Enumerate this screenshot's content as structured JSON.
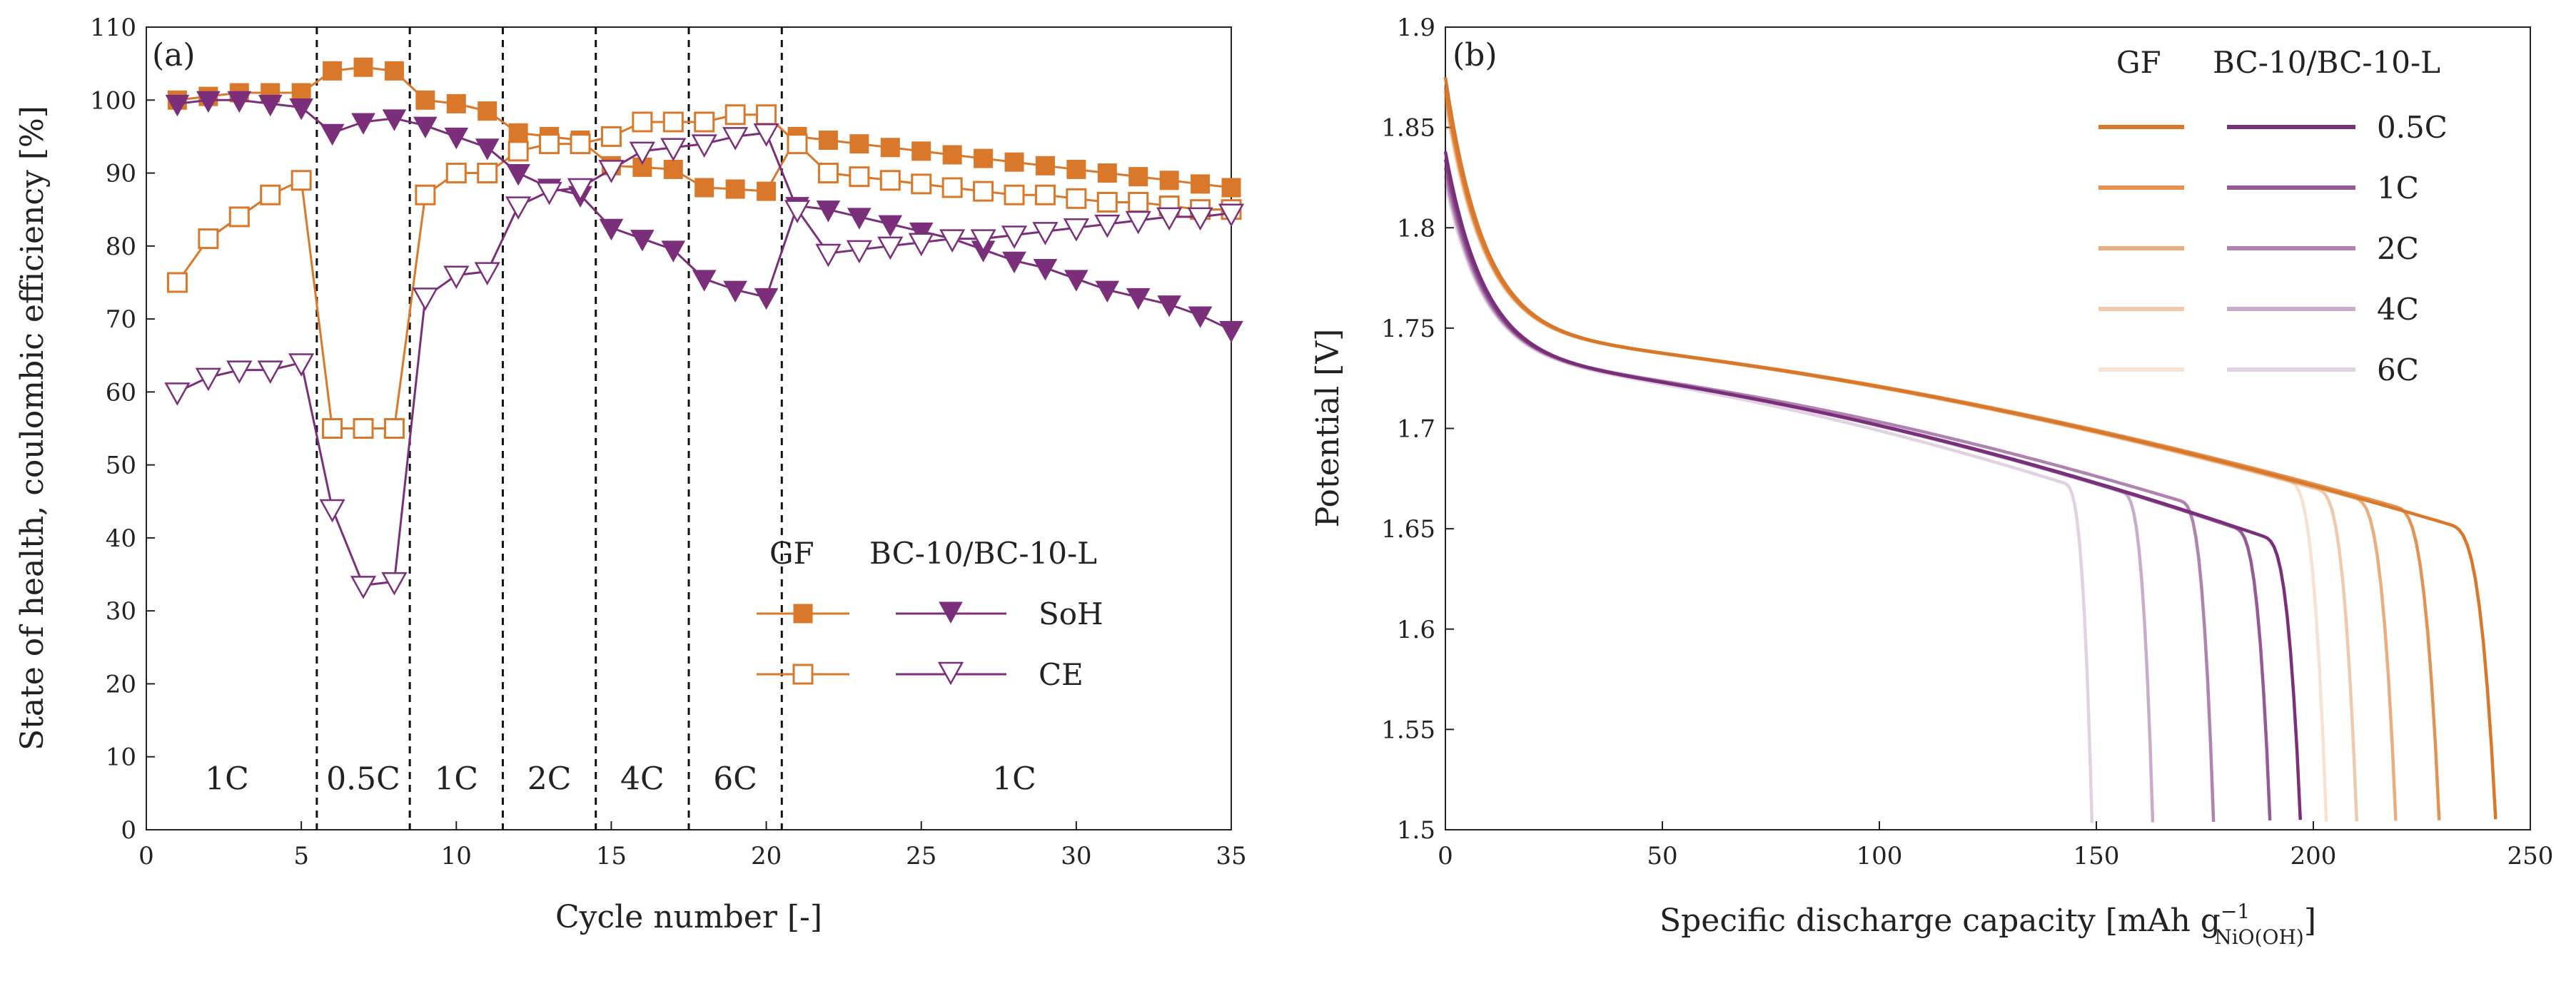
{
  "chart_data": [
    {
      "type": "line",
      "panel_label": "(a)",
      "xlabel": "Cycle number [-]",
      "ylabel": "State of health, coulombic efficiency [%]",
      "xlim": [
        0,
        35
      ],
      "ylim": [
        0,
        110
      ],
      "xticks": [
        0,
        5,
        10,
        15,
        20,
        25,
        30,
        35
      ],
      "yticks": [
        0,
        10,
        20,
        30,
        40,
        50,
        60,
        70,
        80,
        90,
        100,
        110
      ],
      "legend_header": [
        "GF",
        "BC-10/BC-10-L"
      ],
      "legend_rows": [
        "SoH",
        "CE"
      ],
      "colors": {
        "GF": "#D9782A",
        "BC": "#7B2F7B"
      },
      "rate_dividers": [
        5.5,
        8.5,
        11.5,
        14.5,
        17.5,
        20.5
      ],
      "rate_labels": [
        {
          "text": "1C",
          "x": 2.6
        },
        {
          "text": "0.5C",
          "x": 7.0
        },
        {
          "text": "1C",
          "x": 10.0
        },
        {
          "text": "2C",
          "x": 13.0
        },
        {
          "text": "4C",
          "x": 16.0
        },
        {
          "text": "6C",
          "x": 19.0
        },
        {
          "text": "1C",
          "x": 28.0
        }
      ],
      "rate_label_y": 7,
      "series": [
        {
          "name": "GF SoH",
          "group": "GF",
          "marker": "square-filled",
          "x": [
            1,
            2,
            3,
            4,
            5,
            6,
            7,
            8,
            9,
            10,
            11,
            12,
            13,
            14,
            15,
            16,
            17,
            18,
            19,
            20,
            21,
            22,
            23,
            24,
            25,
            26,
            27,
            28,
            29,
            30,
            31,
            32,
            33,
            34,
            35
          ],
          "values": [
            100,
            100.5,
            101,
            101,
            101,
            104,
            104.5,
            104,
            100,
            99.5,
            98.5,
            95.5,
            95,
            94.5,
            91,
            90.8,
            90.5,
            88,
            87.8,
            87.5,
            95,
            94.5,
            94,
            93.5,
            93,
            92.5,
            92,
            91.5,
            91,
            90.5,
            90,
            89.5,
            89,
            88.5,
            88
          ]
        },
        {
          "name": "GF CE",
          "group": "GF",
          "marker": "square-open",
          "x": [
            1,
            2,
            3,
            4,
            5,
            6,
            7,
            8,
            9,
            10,
            11,
            12,
            13,
            14,
            15,
            16,
            17,
            18,
            19,
            20,
            21,
            22,
            23,
            24,
            25,
            26,
            27,
            28,
            29,
            30,
            31,
            32,
            33,
            34,
            35
          ],
          "values": [
            75,
            81,
            84,
            87,
            89,
            55,
            55,
            55,
            87,
            90,
            90,
            93,
            94,
            94,
            95,
            97,
            97,
            97,
            98,
            98,
            94,
            90,
            89.5,
            89,
            88.5,
            88,
            87.5,
            87,
            87,
            86.5,
            86,
            86,
            85.5,
            85,
            85
          ]
        },
        {
          "name": "BC SoH",
          "group": "BC",
          "marker": "triangle-down-filled",
          "x": [
            1,
            2,
            3,
            4,
            5,
            6,
            7,
            8,
            9,
            10,
            11,
            12,
            13,
            14,
            15,
            16,
            17,
            18,
            19,
            20,
            21,
            22,
            23,
            24,
            25,
            26,
            27,
            28,
            29,
            30,
            31,
            32,
            33,
            34,
            35
          ],
          "values": [
            99.5,
            100,
            100,
            99.5,
            99,
            95.5,
            97,
            97.5,
            96.5,
            95,
            93.5,
            90,
            88,
            87,
            82.5,
            81,
            79.5,
            75.5,
            74,
            73,
            85.5,
            85,
            84,
            83,
            82,
            81,
            79.5,
            78,
            77,
            75.5,
            74,
            73,
            72,
            70.5,
            68.5
          ]
        },
        {
          "name": "BC CE",
          "group": "BC",
          "marker": "triangle-down-open",
          "x": [
            1,
            2,
            3,
            4,
            5,
            6,
            7,
            8,
            9,
            10,
            11,
            12,
            13,
            14,
            15,
            16,
            17,
            18,
            19,
            20,
            21,
            22,
            23,
            24,
            25,
            26,
            27,
            28,
            29,
            30,
            31,
            32,
            33,
            34,
            35
          ],
          "values": [
            60,
            62,
            63,
            63,
            64,
            44,
            33.5,
            34,
            73,
            76,
            76.5,
            85.5,
            87.5,
            88,
            90.5,
            93,
            93.5,
            94,
            95,
            95.5,
            85,
            79,
            79.5,
            80,
            80.5,
            81,
            81,
            81.5,
            82,
            82.5,
            83,
            83.5,
            84,
            84,
            84.5
          ]
        }
      ]
    },
    {
      "type": "line",
      "panel_label": "(b)",
      "xlabel": "Specific discharge capacity [mAh g",
      "xlabel_sup": "−1",
      "xlabel_sub": "NiO(OH)",
      "xlabel_end": "]",
      "ylabel": "Potential [V]",
      "xlim": [
        0,
        250
      ],
      "ylim": [
        1.5,
        1.9
      ],
      "xticks": [
        0,
        50,
        100,
        150,
        200,
        250
      ],
      "yticks": [
        "1.5",
        "1.55",
        "1.6",
        "1.65",
        "1.7",
        "1.75",
        "1.8",
        "1.85",
        "1.9"
      ],
      "legend_header": [
        "GF",
        "BC-10/BC-10-L"
      ],
      "legend_rates": [
        "0.5C",
        "1C",
        "2C",
        "4C",
        "6C"
      ],
      "series": [
        {
          "name": "GF 0.5C",
          "group": "GF",
          "color": "#D9782A",
          "opacity": 1.0,
          "qmax": 242,
          "v0": 1.875,
          "v_end": 1.64
        },
        {
          "name": "GF 1C",
          "group": "GF",
          "color": "#D9782A",
          "opacity": 0.8,
          "qmax": 229,
          "v0": 1.87,
          "v_end": 1.65
        },
        {
          "name": "GF 2C",
          "group": "GF",
          "color": "#D9782A",
          "opacity": 0.6,
          "qmax": 219,
          "v0": 1.868,
          "v_end": 1.655
        },
        {
          "name": "GF 4C",
          "group": "GF",
          "color": "#D9782A",
          "opacity": 0.4,
          "qmax": 210,
          "v0": 1.865,
          "v_end": 1.66
        },
        {
          "name": "GF 6C",
          "group": "GF",
          "color": "#D9782A",
          "opacity": 0.22,
          "qmax": 203,
          "v0": 1.862,
          "v_end": 1.665
        },
        {
          "name": "BC 0.5C",
          "group": "BC",
          "color": "#7B2F7B",
          "opacity": 1.0,
          "qmax": 197,
          "v0": 1.838,
          "v_end": 1.635
        },
        {
          "name": "BC 1C",
          "group": "BC",
          "color": "#7B2F7B",
          "opacity": 0.8,
          "qmax": 190,
          "v0": 1.834,
          "v_end": 1.64
        },
        {
          "name": "BC 2C",
          "group": "BC",
          "color": "#7B2F7B",
          "opacity": 0.6,
          "qmax": 177,
          "v0": 1.83,
          "v_end": 1.655
        },
        {
          "name": "BC 4C",
          "group": "BC",
          "color": "#7B2F7B",
          "opacity": 0.4,
          "qmax": 163,
          "v0": 1.826,
          "v_end": 1.66
        },
        {
          "name": "BC 6C",
          "group": "BC",
          "color": "#7B2F7B",
          "opacity": 0.22,
          "qmax": 149,
          "v0": 1.822,
          "v_end": 1.665
        }
      ]
    }
  ]
}
